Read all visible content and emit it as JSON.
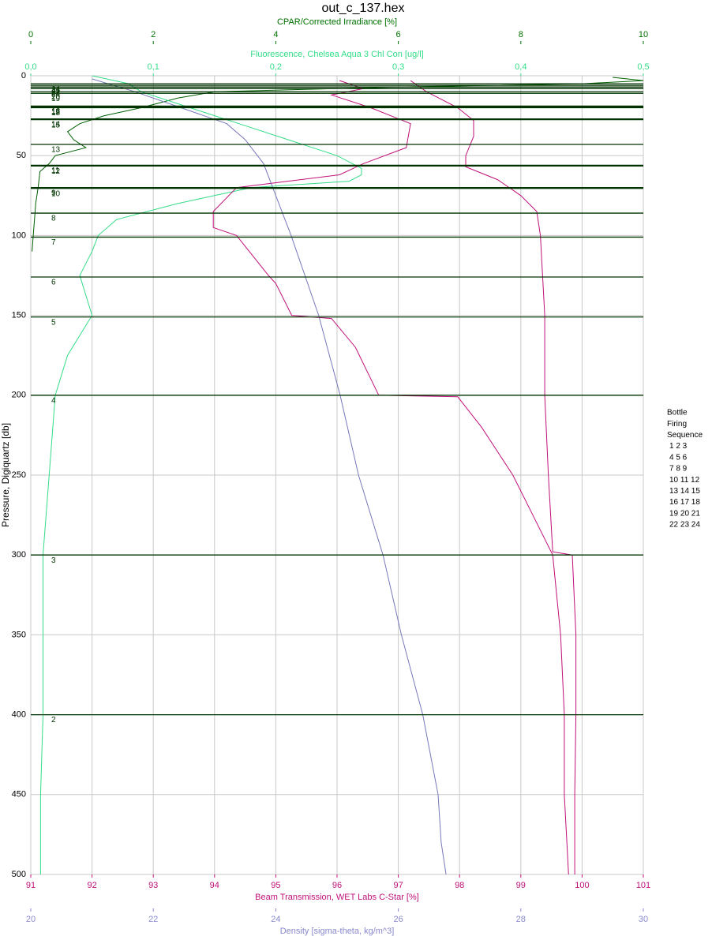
{
  "chart_data": {
    "type": "line",
    "title": "out_c_137.hex",
    "y_title": "Pressure, Digiquartz [db]",
    "ylim": [
      0,
      500
    ],
    "yticks": [
      0,
      50,
      100,
      150,
      200,
      250,
      300,
      350,
      400,
      450,
      500
    ],
    "y_reversed": true,
    "grid": true,
    "x_axes": [
      {
        "title": "CPAR/Corrected Irradiance [%]",
        "position": "top",
        "color": "#007000",
        "xlim": [
          0,
          10
        ],
        "xticks": [
          0,
          2,
          4,
          6,
          8,
          10
        ]
      },
      {
        "title": "Fluorescence, Chelsea Aqua 3 Chl Con [ug/l]",
        "position": "top",
        "color": "#33dd88",
        "xlim": [
          0,
          0.5
        ],
        "xticks": [
          {
            "value": 0,
            "label": "0,0"
          },
          {
            "value": 0.1,
            "label": "0,1"
          },
          {
            "value": 0.2,
            "label": "0,2"
          },
          {
            "value": 0.3,
            "label": "0,3"
          },
          {
            "value": 0.4,
            "label": "0,4"
          },
          {
            "value": 0.5,
            "label": "0,5"
          }
        ]
      },
      {
        "title": "Beam Transmission, WET Labs C-Star [%]",
        "position": "bottom",
        "color": "#c0107a",
        "xlim": [
          91,
          101
        ],
        "xticks": [
          91,
          92,
          93,
          94,
          95,
          96,
          97,
          98,
          99,
          100,
          101
        ],
        "grid": true
      },
      {
        "title": "Density [sigma-theta, kg/m^3]",
        "position": "bottom",
        "color": "#8888cc",
        "xlim": [
          20,
          30
        ],
        "xticks": [
          20,
          22,
          24,
          26,
          28,
          30
        ]
      }
    ],
    "series": [
      {
        "axis": 0,
        "color": "#006000",
        "pressure": [
          1,
          3,
          5,
          7,
          10,
          14,
          20,
          25,
          30,
          35,
          40,
          45,
          50,
          55,
          60,
          70,
          80,
          90,
          100,
          110
        ],
        "values": [
          9.5,
          10,
          9,
          6,
          3,
          2.4,
          1.8,
          1.2,
          0.8,
          0.6,
          0.7,
          0.9,
          0.4,
          0.3,
          0.15,
          0.12,
          0.08,
          0.06,
          0.04,
          0.02
        ]
      },
      {
        "axis": 1,
        "color": "#33dd88",
        "pressure": [
          0,
          5,
          10,
          20,
          30,
          40,
          50,
          58,
          62,
          66,
          70,
          75,
          80,
          90,
          100,
          110,
          125,
          150,
          175,
          200,
          250,
          300,
          350,
          400,
          450,
          500
        ],
        "values": [
          0.05,
          0.08,
          0.09,
          0.13,
          0.17,
          0.21,
          0.25,
          0.27,
          0.27,
          0.26,
          0.18,
          0.15,
          0.12,
          0.07,
          0.055,
          0.05,
          0.04,
          0.05,
          0.03,
          0.02,
          0.015,
          0.01,
          0.01,
          0.01,
          0.008,
          0.008
        ]
      },
      {
        "axis": 2,
        "color": "#c0107a",
        "pressure": [
          3,
          10,
          20,
          28,
          38,
          50,
          57,
          65,
          75,
          85,
          100,
          150,
          200,
          250,
          298,
          300,
          350,
          400,
          450,
          500
        ],
        "values": [
          97.2,
          97.46,
          97.97,
          98.23,
          98.23,
          98.1,
          98.1,
          98.62,
          99.0,
          99.26,
          99.32,
          99.39,
          99.39,
          99.45,
          99.52,
          99.84,
          99.9,
          99.9,
          99.88,
          99.88
        ]
      },
      {
        "axis": 2,
        "color": "#c0107a",
        "pressure": [
          3,
          8,
          12,
          20,
          30,
          45,
          55,
          62,
          70,
          85,
          95,
          100,
          125,
          130,
          150,
          152,
          170,
          200,
          201,
          220,
          250,
          280,
          300,
          350,
          400,
          450,
          500
        ],
        "values": [
          96.04,
          96.43,
          95.91,
          96.55,
          97.2,
          97.13,
          96.43,
          96.04,
          94.36,
          93.98,
          93.98,
          94.36,
          94.88,
          95.0,
          95.26,
          95.91,
          96.3,
          96.68,
          97.97,
          98.36,
          98.87,
          99.26,
          99.52,
          99.65,
          99.71,
          99.71,
          99.78
        ]
      },
      {
        "axis": 3,
        "color": "#7777bb",
        "pressure": [
          2,
          10,
          18,
          30,
          40,
          55,
          70,
          100,
          150,
          200,
          250,
          300,
          350,
          400,
          450,
          480,
          500
        ],
        "values": [
          21.0,
          21.7,
          22.3,
          23.2,
          23.5,
          23.8,
          23.95,
          24.25,
          24.7,
          25.05,
          25.35,
          25.75,
          26.05,
          26.4,
          26.65,
          26.7,
          26.78
        ]
      }
    ],
    "bottle_color": "#003300",
    "bottles": [
      {
        "label": "2",
        "pressure": 400
      },
      {
        "label": "3",
        "pressure": 300
      },
      {
        "label": "4",
        "pressure": 200
      },
      {
        "label": "5",
        "pressure": 151
      },
      {
        "label": "6",
        "pressure": 126
      },
      {
        "label": "7",
        "pressure": 101
      },
      {
        "label": "8",
        "pressure": 86
      },
      {
        "label": "9",
        "pressure": 70
      },
      {
        "label": "10",
        "pressure": 70.5
      },
      {
        "label": "11",
        "pressure": 56
      },
      {
        "label": "12",
        "pressure": 56.5
      },
      {
        "label": "13",
        "pressure": 43
      },
      {
        "label": "14",
        "pressure": 27
      },
      {
        "label": "15",
        "pressure": 27.5
      },
      {
        "label": "16",
        "pressure": 19
      },
      {
        "label": "17",
        "pressure": 19.5
      },
      {
        "label": "18",
        "pressure": 20
      },
      {
        "label": "19",
        "pressure": 11
      },
      {
        "label": "20",
        "pressure": 10
      },
      {
        "label": "21",
        "pressure": 8
      },
      {
        "label": "22",
        "pressure": 7
      },
      {
        "label": "23",
        "pressure": 6
      },
      {
        "label": "24",
        "pressure": 5
      }
    ],
    "legend": [
      "Bottle",
      "Firing",
      "Sequence",
      "1  2  3",
      "4  5  6",
      "7  8  9",
      "10 11 12",
      "13 14 15",
      "16 17 18",
      "19 20 21",
      "22 23 24"
    ]
  }
}
